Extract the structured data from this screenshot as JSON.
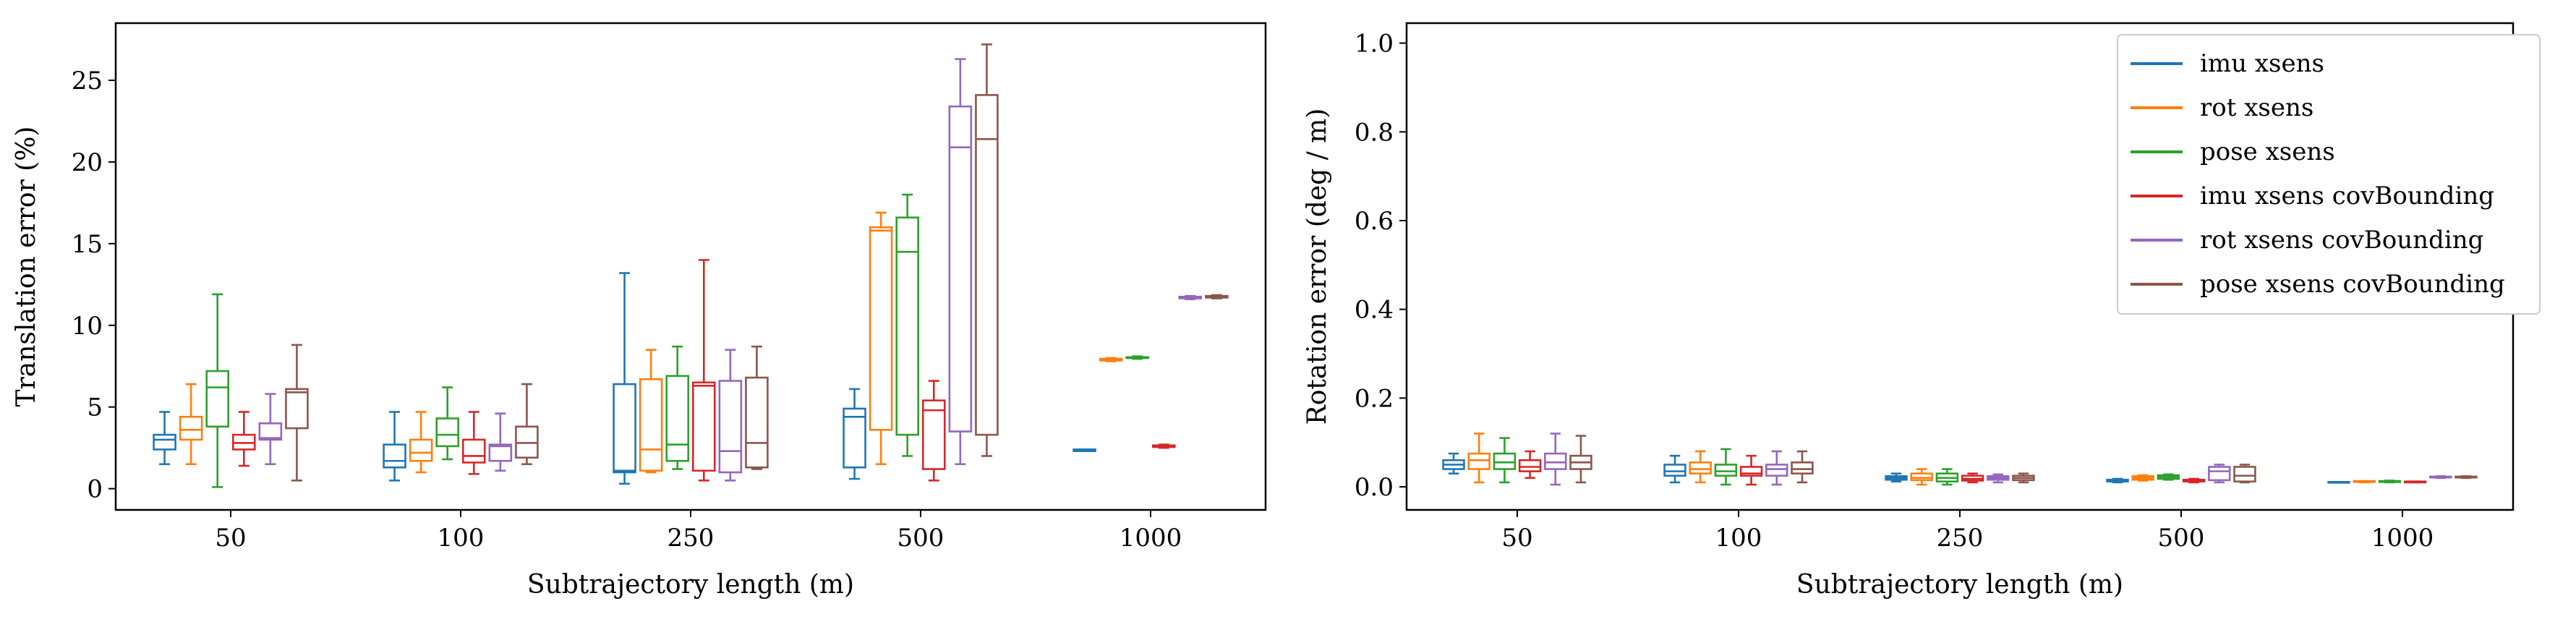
{
  "chart_data": [
    {
      "type": "box",
      "xlabel": "Subtrajectory length (m)",
      "ylabel": "Translation error (%)",
      "ylim": [
        -1.3,
        28.5
      ],
      "yticks": [
        0,
        5,
        10,
        15,
        20,
        25
      ],
      "categories": [
        "50",
        "100",
        "250",
        "500",
        "1000"
      ],
      "grid": false,
      "series": [
        {
          "name": "imu xsens",
          "color": "#1f77b4",
          "boxes": [
            {
              "whislo": 1.5,
              "q1": 2.4,
              "med": 3.0,
              "q3": 3.3,
              "whishi": 4.7
            },
            {
              "whislo": 0.5,
              "q1": 1.3,
              "med": 1.7,
              "q3": 2.7,
              "whishi": 4.7
            },
            {
              "whislo": 0.3,
              "q1": 1.0,
              "med": 1.1,
              "q3": 6.4,
              "whishi": 13.2
            },
            {
              "whislo": 0.6,
              "q1": 1.3,
              "med": 4.4,
              "q3": 4.9,
              "whishi": 6.1
            },
            {
              "whislo": 2.3,
              "q1": 2.3,
              "med": 2.35,
              "q3": 2.4,
              "whishi": 2.4
            }
          ]
        },
        {
          "name": "rot xsens",
          "color": "#ff7f0e",
          "boxes": [
            {
              "whislo": 1.5,
              "q1": 3.0,
              "med": 3.6,
              "q3": 4.4,
              "whishi": 6.4
            },
            {
              "whislo": 1.0,
              "q1": 1.7,
              "med": 2.2,
              "q3": 3.0,
              "whishi": 4.7
            },
            {
              "whislo": 1.0,
              "q1": 1.1,
              "med": 2.4,
              "q3": 6.7,
              "whishi": 8.5
            },
            {
              "whislo": 1.5,
              "q1": 3.6,
              "med": 15.8,
              "q3": 16.0,
              "whishi": 16.9
            },
            {
              "whislo": 7.8,
              "q1": 7.85,
              "med": 7.9,
              "q3": 7.95,
              "whishi": 8.0
            }
          ]
        },
        {
          "name": "pose xsens",
          "color": "#2ca02c",
          "boxes": [
            {
              "whislo": 0.1,
              "q1": 3.8,
              "med": 6.2,
              "q3": 7.2,
              "whishi": 11.9
            },
            {
              "whislo": 1.8,
              "q1": 2.6,
              "med": 3.3,
              "q3": 4.3,
              "whishi": 6.2
            },
            {
              "whislo": 1.2,
              "q1": 1.7,
              "med": 2.7,
              "q3": 6.9,
              "whishi": 8.7
            },
            {
              "whislo": 2.0,
              "q1": 3.3,
              "med": 14.5,
              "q3": 16.6,
              "whishi": 18.0
            },
            {
              "whislo": 7.95,
              "q1": 8.0,
              "med": 8.0,
              "q3": 8.05,
              "whishi": 8.1
            }
          ]
        },
        {
          "name": "imu xsens covBounding",
          "color": "#d62728",
          "boxes": [
            {
              "whislo": 1.4,
              "q1": 2.4,
              "med": 2.8,
              "q3": 3.3,
              "whishi": 4.7
            },
            {
              "whislo": 0.9,
              "q1": 1.6,
              "med": 2.0,
              "q3": 3.0,
              "whishi": 4.7
            },
            {
              "whislo": 0.5,
              "q1": 1.1,
              "med": 6.3,
              "q3": 6.5,
              "whishi": 14.0
            },
            {
              "whislo": 0.5,
              "q1": 1.2,
              "med": 4.8,
              "q3": 5.4,
              "whishi": 6.6
            },
            {
              "whislo": 2.5,
              "q1": 2.55,
              "med": 2.6,
              "q3": 2.65,
              "whishi": 2.7
            }
          ]
        },
        {
          "name": "rot xsens covBounding",
          "color": "#9467bd",
          "boxes": [
            {
              "whislo": 1.5,
              "q1": 3.0,
              "med": 3.1,
              "q3": 4.0,
              "whishi": 5.8
            },
            {
              "whislo": 1.1,
              "q1": 1.7,
              "med": 2.6,
              "q3": 2.7,
              "whishi": 4.6
            },
            {
              "whislo": 0.5,
              "q1": 1.0,
              "med": 2.3,
              "q3": 6.6,
              "whishi": 8.5
            },
            {
              "whislo": 1.5,
              "q1": 3.5,
              "med": 20.9,
              "q3": 23.4,
              "whishi": 26.3
            },
            {
              "whislo": 11.6,
              "q1": 11.65,
              "med": 11.7,
              "q3": 11.75,
              "whishi": 11.8
            }
          ]
        },
        {
          "name": "pose xsens covBounding",
          "color": "#8c564b",
          "boxes": [
            {
              "whislo": 0.5,
              "q1": 3.7,
              "med": 5.9,
              "q3": 6.1,
              "whishi": 8.8
            },
            {
              "whislo": 1.5,
              "q1": 1.9,
              "med": 2.8,
              "q3": 3.8,
              "whishi": 6.4
            },
            {
              "whislo": 1.2,
              "q1": 1.3,
              "med": 2.8,
              "q3": 6.8,
              "whishi": 8.7
            },
            {
              "whislo": 2.0,
              "q1": 3.3,
              "med": 21.4,
              "q3": 24.1,
              "whishi": 27.2
            },
            {
              "whislo": 11.65,
              "q1": 11.7,
              "med": 11.75,
              "q3": 11.8,
              "whishi": 11.85
            }
          ]
        }
      ]
    },
    {
      "type": "box",
      "xlabel": "Subtrajectory length (m)",
      "ylabel": "Rotation error (deg / m)",
      "ylim": [
        -0.052,
        1.045
      ],
      "yticks": [
        0.0,
        0.2,
        0.4,
        0.6,
        0.8,
        1.0
      ],
      "ytick_labels": [
        "0.0",
        "0.2",
        "0.4",
        "0.6",
        "0.8",
        "1.0"
      ],
      "categories": [
        "50",
        "100",
        "250",
        "500",
        "1000"
      ],
      "grid": false,
      "legend": {
        "position": "upper right"
      },
      "series": [
        {
          "name": "imu xsens",
          "color": "#1f77b4",
          "boxes": [
            {
              "whislo": 0.03,
              "q1": 0.04,
              "med": 0.05,
              "q3": 0.06,
              "whishi": 0.075
            },
            {
              "whislo": 0.01,
              "q1": 0.025,
              "med": 0.035,
              "q3": 0.05,
              "whishi": 0.07
            },
            {
              "whislo": 0.012,
              "q1": 0.016,
              "med": 0.02,
              "q3": 0.024,
              "whishi": 0.03
            },
            {
              "whislo": 0.01,
              "q1": 0.012,
              "med": 0.014,
              "q3": 0.016,
              "whishi": 0.018
            },
            {
              "whislo": 0.01,
              "q1": 0.01,
              "med": 0.01,
              "q3": 0.011,
              "whishi": 0.011
            }
          ]
        },
        {
          "name": "rot xsens",
          "color": "#ff7f0e",
          "boxes": [
            {
              "whislo": 0.01,
              "q1": 0.04,
              "med": 0.06,
              "q3": 0.075,
              "whishi": 0.12
            },
            {
              "whislo": 0.01,
              "q1": 0.03,
              "med": 0.04,
              "q3": 0.055,
              "whishi": 0.08
            },
            {
              "whislo": 0.005,
              "q1": 0.015,
              "med": 0.02,
              "q3": 0.03,
              "whishi": 0.04
            },
            {
              "whislo": 0.014,
              "q1": 0.016,
              "med": 0.02,
              "q3": 0.024,
              "whishi": 0.026
            },
            {
              "whislo": 0.01,
              "q1": 0.011,
              "med": 0.012,
              "q3": 0.013,
              "whishi": 0.013
            }
          ]
        },
        {
          "name": "pose xsens",
          "color": "#2ca02c",
          "boxes": [
            {
              "whislo": 0.01,
              "q1": 0.04,
              "med": 0.055,
              "q3": 0.075,
              "whishi": 0.11
            },
            {
              "whislo": 0.005,
              "q1": 0.025,
              "med": 0.035,
              "q3": 0.05,
              "whishi": 0.085
            },
            {
              "whislo": 0.005,
              "q1": 0.012,
              "med": 0.02,
              "q3": 0.03,
              "whishi": 0.04
            },
            {
              "whislo": 0.016,
              "q1": 0.018,
              "med": 0.022,
              "q3": 0.026,
              "whishi": 0.028
            },
            {
              "whislo": 0.01,
              "q1": 0.011,
              "med": 0.012,
              "q3": 0.013,
              "whishi": 0.014
            }
          ]
        },
        {
          "name": "imu xsens covBounding",
          "color": "#d62728",
          "boxes": [
            {
              "whislo": 0.02,
              "q1": 0.035,
              "med": 0.045,
              "q3": 0.06,
              "whishi": 0.08
            },
            {
              "whislo": 0.005,
              "q1": 0.025,
              "med": 0.03,
              "q3": 0.045,
              "whishi": 0.07
            },
            {
              "whislo": 0.01,
              "q1": 0.014,
              "med": 0.018,
              "q3": 0.025,
              "whishi": 0.03
            },
            {
              "whislo": 0.01,
              "q1": 0.012,
              "med": 0.014,
              "q3": 0.016,
              "whishi": 0.018
            },
            {
              "whislo": 0.01,
              "q1": 0.01,
              "med": 0.011,
              "q3": 0.012,
              "whishi": 0.012
            }
          ]
        },
        {
          "name": "rot xsens covBounding",
          "color": "#9467bd",
          "boxes": [
            {
              "whislo": 0.005,
              "q1": 0.04,
              "med": 0.055,
              "q3": 0.075,
              "whishi": 0.12
            },
            {
              "whislo": 0.005,
              "q1": 0.025,
              "med": 0.04,
              "q3": 0.05,
              "whishi": 0.08
            },
            {
              "whislo": 0.01,
              "q1": 0.016,
              "med": 0.02,
              "q3": 0.024,
              "whishi": 0.028
            },
            {
              "whislo": 0.01,
              "q1": 0.015,
              "med": 0.035,
              "q3": 0.045,
              "whishi": 0.05
            },
            {
              "whislo": 0.02,
              "q1": 0.021,
              "med": 0.022,
              "q3": 0.023,
              "whishi": 0.024
            }
          ]
        },
        {
          "name": "pose xsens covBounding",
          "color": "#8c564b",
          "boxes": [
            {
              "whislo": 0.01,
              "q1": 0.04,
              "med": 0.055,
              "q3": 0.07,
              "whishi": 0.115
            },
            {
              "whislo": 0.01,
              "q1": 0.03,
              "med": 0.04,
              "q3": 0.055,
              "whishi": 0.08
            },
            {
              "whislo": 0.01,
              "q1": 0.015,
              "med": 0.02,
              "q3": 0.025,
              "whishi": 0.03
            },
            {
              "whislo": 0.01,
              "q1": 0.012,
              "med": 0.025,
              "q3": 0.045,
              "whishi": 0.05
            },
            {
              "whislo": 0.02,
              "q1": 0.021,
              "med": 0.022,
              "q3": 0.023,
              "whishi": 0.024
            }
          ]
        }
      ]
    }
  ]
}
